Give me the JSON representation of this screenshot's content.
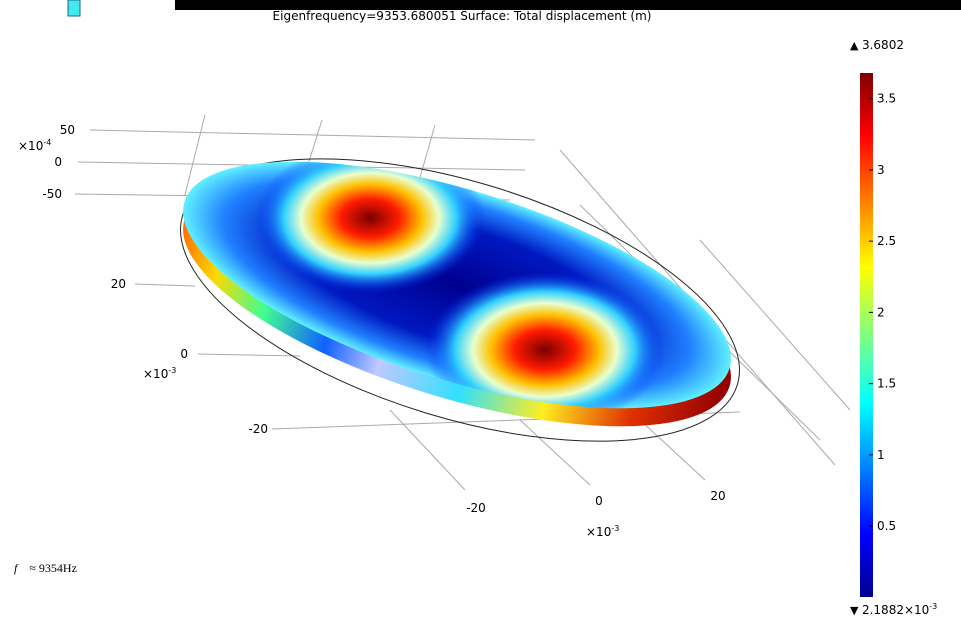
{
  "header": {
    "title": "Eigenfrequency=9353.680051   Surface: Total displacement (m)"
  },
  "axes": {
    "z": {
      "ticks": [
        "50",
        "0",
        "-50"
      ],
      "multiplier": "×10",
      "exponent": "-4"
    },
    "y": {
      "ticks": [
        "20",
        "0",
        "-20"
      ],
      "multiplier": "×10",
      "exponent": "-3"
    },
    "x": {
      "ticks": [
        "-20",
        "0",
        "20"
      ],
      "multiplier": "×10",
      "exponent": "-3"
    }
  },
  "colorbar": {
    "max": 3.6802,
    "min": {
      "value": 0.0021882,
      "mantissa": "2.1882",
      "multiplier": "×10",
      "exponent": "-3"
    },
    "ticks": [
      0.5,
      1,
      1.5,
      2,
      2.5,
      3,
      3.5
    ]
  },
  "annotation": {
    "symbol": "f",
    "text": "≈ 9354Hz"
  }
}
